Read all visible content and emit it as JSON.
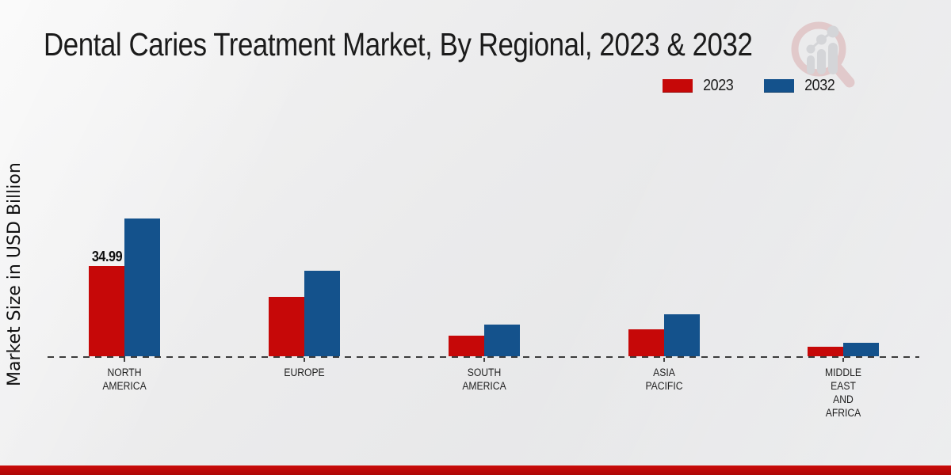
{
  "header": {
    "title": "Dental Caries Treatment Market, By Regional, 2023 & 2032"
  },
  "legend": {
    "items": [
      {
        "label": "2023",
        "color": "#c60808"
      },
      {
        "label": "2032",
        "color": "#14528c"
      }
    ]
  },
  "y_axis": {
    "label": "Market Size in USD Billion"
  },
  "watermark": {
    "name": "magnifier-growth-chart-logo",
    "ring_color": "#d9aeb0",
    "bars_color": "#c3c4c8"
  },
  "footer": {
    "stripe_color": "#c10a08"
  },
  "colors": {
    "axis_line": "#3b3b3b",
    "text": "#1b1b1b",
    "background": "#ebebec"
  },
  "chart_data": {
    "type": "bar",
    "title": "Dental Caries Treatment Market, By Regional, 2023 & 2032",
    "ylabel": "Market Size in USD Billion",
    "xlabel": "",
    "categories": [
      "NORTH AMERICA",
      "EUROPE",
      "SOUTH AMERICA",
      "ASIA PACIFIC",
      "MIDDLE EAST AND AFRICA"
    ],
    "category_label_lines": [
      [
        "NORTH",
        "AMERICA"
      ],
      [
        "EUROPE"
      ],
      [
        "SOUTH",
        "AMERICA"
      ],
      [
        "ASIA",
        "PACIFIC"
      ],
      [
        "MIDDLE",
        "EAST",
        "AND",
        "AFRICA"
      ]
    ],
    "series": [
      {
        "name": "2023",
        "color": "#c60808",
        "values": [
          34.99,
          23.0,
          8.1,
          10.5,
          3.8
        ],
        "value_labels": [
          "34.99",
          null,
          null,
          null,
          null
        ]
      },
      {
        "name": "2032",
        "color": "#14528c",
        "values": [
          53.4,
          33.0,
          12.2,
          16.2,
          5.2
        ],
        "value_labels": [
          null,
          null,
          null,
          null,
          null
        ]
      }
    ],
    "ylim": [
      0,
      60
    ],
    "grid": false,
    "baseline_style": "dashed",
    "legend_position": "top-right"
  }
}
